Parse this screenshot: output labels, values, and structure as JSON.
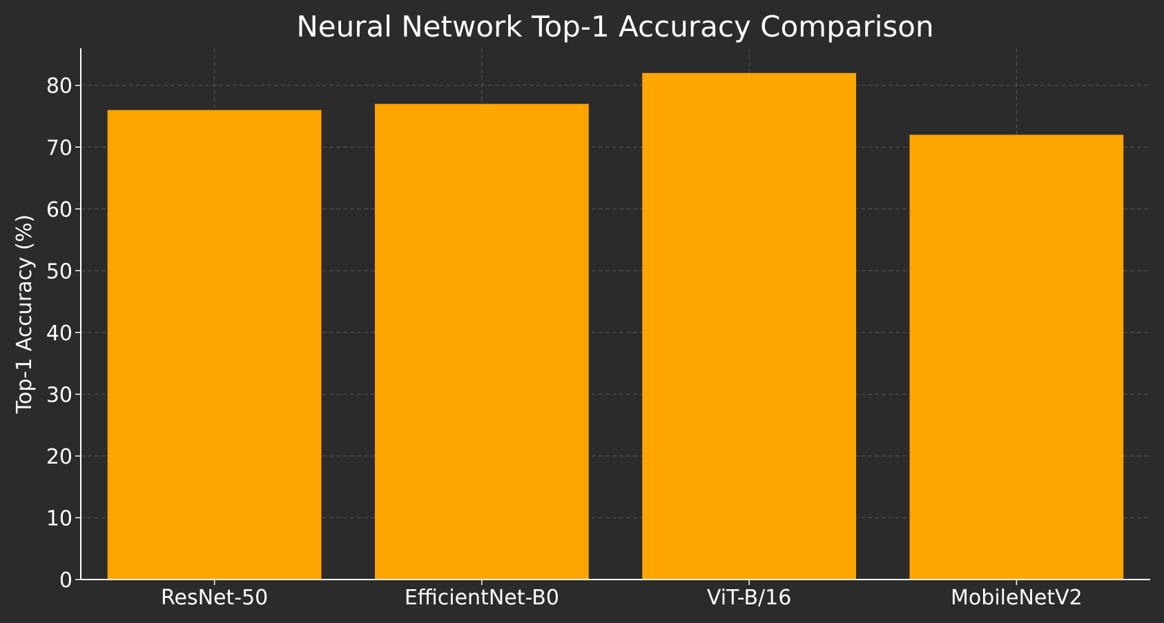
{
  "chart_data": {
    "type": "bar",
    "title": "Neural Network Top-1 Accuracy Comparison",
    "xlabel": "",
    "ylabel": "Top-1 Accuracy (%)",
    "categories": [
      "ResNet-50",
      "EfficientNet-B0",
      "ViT-B/16",
      "MobileNetV2"
    ],
    "values": [
      76,
      77,
      82,
      72
    ],
    "ylim": [
      0,
      86
    ],
    "yticks": [
      0,
      10,
      20,
      30,
      40,
      50,
      60,
      70,
      80
    ],
    "grid": true,
    "legend": "none",
    "colors": {
      "background": "#2b2b2b",
      "bar": "#ffa500",
      "text": "#ffffff",
      "grid": "#6e6e6e",
      "axis": "#ffffff"
    }
  }
}
